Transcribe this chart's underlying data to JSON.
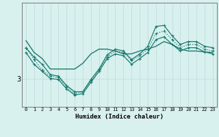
{
  "xlabel": "Humidex (Indice chaleur)",
  "bg_color": "#d8f0ee",
  "line_color": "#1a7a6e",
  "grid_color": "#c0dedd",
  "x_ticks": [
    0,
    1,
    2,
    3,
    4,
    5,
    6,
    7,
    8,
    9,
    10,
    11,
    12,
    13,
    14,
    15,
    16,
    17,
    18,
    19,
    20,
    21,
    22,
    23
  ],
  "y_tick_val": 3.0,
  "y_tick_label": "3",
  "ylim": [
    2.4,
    4.6
  ],
  "series": [
    {
      "y": [
        3.8,
        3.55,
        3.42,
        3.2,
        3.2,
        3.2,
        3.2,
        3.32,
        3.52,
        3.62,
        3.62,
        3.58,
        3.52,
        3.52,
        3.58,
        3.62,
        3.68,
        3.78,
        3.72,
        3.62,
        3.58,
        3.58,
        3.56,
        3.55
      ],
      "linestyle": "-",
      "marker": false,
      "linewidth": 1.0
    },
    {
      "y": [
        3.65,
        3.45,
        3.3,
        3.08,
        3.05,
        2.85,
        2.72,
        2.72,
        2.98,
        3.2,
        3.5,
        3.62,
        3.58,
        3.4,
        3.52,
        3.68,
        4.1,
        4.12,
        3.9,
        3.72,
        3.78,
        3.78,
        3.68,
        3.65
      ],
      "linestyle": "-",
      "marker": true,
      "linewidth": 0.9
    },
    {
      "y": [
        3.55,
        3.3,
        3.15,
        3.0,
        2.98,
        2.78,
        2.65,
        2.68,
        2.92,
        3.15,
        3.42,
        3.52,
        3.48,
        3.3,
        3.42,
        3.55,
        3.82,
        3.88,
        3.72,
        3.58,
        3.65,
        3.65,
        3.56,
        3.52
      ],
      "linestyle": "-",
      "marker": true,
      "linewidth": 0.9
    },
    {
      "y": [
        3.65,
        3.4,
        3.18,
        3.05,
        3.02,
        2.82,
        2.68,
        2.72,
        2.95,
        3.18,
        3.45,
        3.58,
        3.55,
        3.38,
        3.48,
        3.62,
        3.95,
        4.0,
        3.82,
        3.65,
        3.72,
        3.72,
        3.62,
        3.58
      ],
      "linestyle": ":",
      "marker": true,
      "linewidth": 0.9
    }
  ]
}
